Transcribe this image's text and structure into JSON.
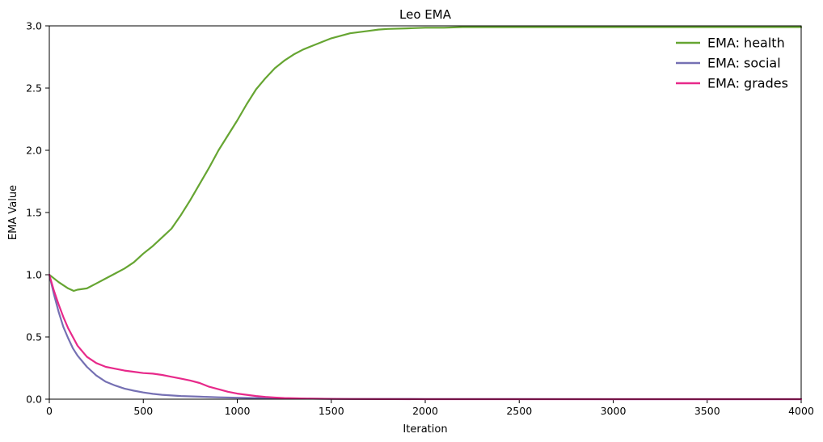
{
  "chart_data": {
    "type": "line",
    "title": "Leo EMA",
    "xlabel": "Iteration",
    "ylabel": "EMA Value",
    "xlim": [
      0,
      4000
    ],
    "ylim": [
      0,
      3.0
    ],
    "xticks": [
      0,
      500,
      1000,
      1500,
      2000,
      2500,
      3000,
      3500,
      4000
    ],
    "yticks": [
      0.0,
      0.5,
      1.0,
      1.5,
      2.0,
      2.5,
      3.0
    ],
    "xtick_labels": [
      "0",
      "500",
      "1000",
      "1500",
      "2000",
      "2500",
      "3000",
      "3500",
      "4000"
    ],
    "ytick_labels": [
      "0.0",
      "0.5",
      "1.0",
      "1.5",
      "2.0",
      "2.5",
      "3.0"
    ],
    "grid": false,
    "legend_position": "top-right",
    "series": [
      {
        "name": "EMA: health",
        "color": "#66a532",
        "x": [
          0,
          50,
          100,
          130,
          150,
          200,
          250,
          300,
          350,
          400,
          450,
          500,
          550,
          600,
          650,
          700,
          750,
          800,
          850,
          900,
          950,
          1000,
          1050,
          1100,
          1150,
          1200,
          1250,
          1300,
          1350,
          1400,
          1450,
          1500,
          1550,
          1600,
          1650,
          1700,
          1750,
          1800,
          1900,
          2000,
          2100,
          2200,
          2400,
          2600,
          3000,
          3500,
          4000
        ],
        "y": [
          1.0,
          0.94,
          0.89,
          0.87,
          0.88,
          0.89,
          0.93,
          0.97,
          1.01,
          1.05,
          1.1,
          1.17,
          1.23,
          1.3,
          1.37,
          1.48,
          1.6,
          1.73,
          1.86,
          2.0,
          2.12,
          2.24,
          2.37,
          2.49,
          2.58,
          2.66,
          2.72,
          2.77,
          2.81,
          2.84,
          2.87,
          2.9,
          2.92,
          2.94,
          2.95,
          2.96,
          2.97,
          2.975,
          2.98,
          2.985,
          2.985,
          2.99,
          2.99,
          2.99,
          2.99,
          2.99,
          2.99
        ]
      },
      {
        "name": "EMA: social",
        "color": "#7570b3",
        "x": [
          0,
          25,
          50,
          75,
          100,
          125,
          150,
          200,
          250,
          300,
          350,
          400,
          450,
          500,
          550,
          600,
          700,
          800,
          900,
          1000,
          1100,
          1200,
          1400,
          1600,
          2000,
          3000,
          4000
        ],
        "y": [
          1.0,
          0.84,
          0.7,
          0.58,
          0.49,
          0.41,
          0.35,
          0.26,
          0.19,
          0.14,
          0.11,
          0.085,
          0.068,
          0.054,
          0.043,
          0.035,
          0.025,
          0.02,
          0.015,
          0.012,
          0.009,
          0.007,
          0.004,
          0.002,
          0.001,
          0.0,
          0.0
        ]
      },
      {
        "name": "EMA: grades",
        "color": "#e7298a",
        "x": [
          0,
          25,
          50,
          75,
          100,
          125,
          150,
          200,
          250,
          300,
          350,
          400,
          450,
          500,
          550,
          600,
          650,
          700,
          750,
          800,
          850,
          900,
          950,
          1000,
          1050,
          1100,
          1150,
          1200,
          1250,
          1300,
          1400,
          1500,
          1600,
          2000,
          3000,
          4000
        ],
        "y": [
          1.0,
          0.87,
          0.76,
          0.66,
          0.57,
          0.5,
          0.43,
          0.34,
          0.29,
          0.26,
          0.245,
          0.23,
          0.22,
          0.21,
          0.205,
          0.195,
          0.18,
          0.165,
          0.15,
          0.13,
          0.1,
          0.08,
          0.06,
          0.045,
          0.035,
          0.025,
          0.018,
          0.013,
          0.009,
          0.007,
          0.004,
          0.002,
          0.001,
          0.0,
          0.0,
          0.0
        ]
      }
    ]
  }
}
